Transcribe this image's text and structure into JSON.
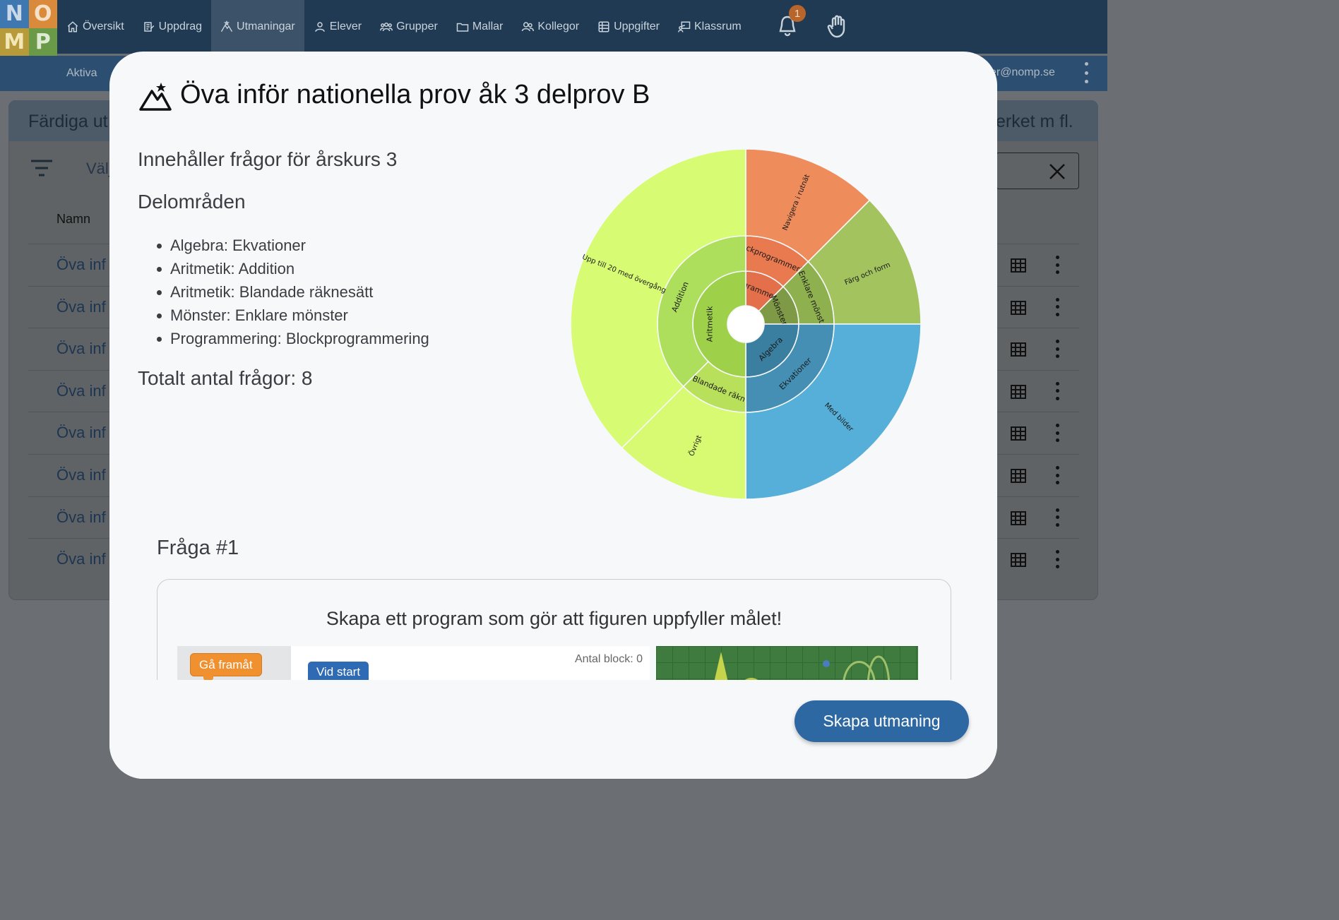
{
  "logo": {
    "letters": [
      "N",
      "O",
      "M",
      "P"
    ]
  },
  "nav": {
    "items": [
      {
        "label": "Översikt",
        "icon": "home-icon"
      },
      {
        "label": "Uppdrag",
        "icon": "assignment-icon"
      },
      {
        "label": "Utmaningar",
        "icon": "mountain-icon",
        "active": true
      },
      {
        "label": "Elever",
        "icon": "person-icon"
      },
      {
        "label": "Grupper",
        "icon": "group-icon"
      },
      {
        "label": "Mallar",
        "icon": "folder-icon"
      },
      {
        "label": "Kollegor",
        "icon": "colleagues-icon"
      },
      {
        "label": "Uppgifter",
        "icon": "tasks-icon"
      },
      {
        "label": "Klassrum",
        "icon": "classroom-icon"
      }
    ],
    "notification_count": "1"
  },
  "subbar": {
    "active_label": "Aktiva",
    "email": "er@nomp.se"
  },
  "background": {
    "title": "Färdiga ut",
    "title_right": "erket m fl.",
    "filter_label": "Välj",
    "column_name": "Namn",
    "rows": [
      "Öva inf",
      "Öva inf",
      "Öva inf",
      "Öva inf",
      "Öva inf",
      "Öva inf",
      "Öva inf",
      "Öva inf"
    ]
  },
  "modal": {
    "title": "Öva inför nationella prov åk 3 delprov B",
    "grade_text": "Innehåller frågor för årskurs 3",
    "subareas_heading": "Delområden",
    "subareas": [
      "Algebra: Ekvationer",
      "Aritmetik: Addition",
      "Aritmetik: Blandade räknesätt",
      "Mönster: Enklare mönster",
      "Programmering: Blockprogrammering"
    ],
    "total_text": "Totalt antal frågor: 8",
    "question_heading": "Fråga #1",
    "question_text": "Skapa ett program som gör att figuren uppfyller målet!",
    "block_label": "Gå framåt",
    "start_label": "Vid start",
    "block_count": "Antal block: 0",
    "cta_label": "Skapa utmaning"
  },
  "chart_data": {
    "type": "sunburst",
    "rings": [
      {
        "level": 1,
        "segments": [
          {
            "label": "Programmering",
            "value": 1,
            "color": "#e3704a"
          },
          {
            "label": "Mönster",
            "value": 1,
            "color": "#7f9a46"
          },
          {
            "label": "Algebra",
            "value": 2,
            "color": "#3a7ea0"
          },
          {
            "label": "Aritmetik",
            "value": 4,
            "color": "#9fd04a"
          }
        ]
      },
      {
        "level": 2,
        "segments": [
          {
            "label": "Blockprogrammering",
            "value": 1,
            "color": "#e9794f"
          },
          {
            "label": "Enklare mönst",
            "value": 1,
            "color": "#8fb04e"
          },
          {
            "label": "Ekvationer",
            "value": 2,
            "color": "#448fb3"
          },
          {
            "label": "Blandade räkn",
            "value": 1,
            "color": "#b8e05a"
          },
          {
            "label": "Addition",
            "value": 3,
            "color": "#addf5c"
          }
        ]
      },
      {
        "level": 3,
        "segments": [
          {
            "label": "Navigera i rutnät",
            "value": 1,
            "color": "#ee8c5c"
          },
          {
            "label": "Färg och form",
            "value": 1,
            "color": "#a2c35e"
          },
          {
            "label": "Med bilder",
            "value": 2,
            "color": "#56afd8"
          },
          {
            "label": "Övrigt",
            "value": 1,
            "color": "#d8fa72"
          },
          {
            "label": "Upp till 20 med övergång",
            "value": 3,
            "color": "#d7fb72"
          }
        ]
      }
    ]
  }
}
